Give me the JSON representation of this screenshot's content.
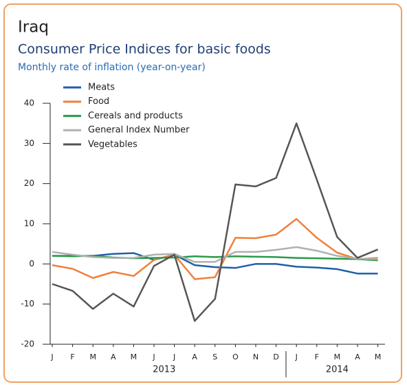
{
  "chart_data": {
    "type": "line",
    "title": "Iraq",
    "subtitle": "Consumer Price Indices for basic foods",
    "y_label": "Monthly rate of inflation (year-on-year)",
    "categories": [
      "J",
      "F",
      "M",
      "A",
      "M",
      "J",
      "J",
      "A",
      "S",
      "O",
      "N",
      "D",
      "J",
      "F",
      "M",
      "A",
      "M"
    ],
    "years": [
      "2013",
      "2014"
    ],
    "ylim": [
      -20,
      40
    ],
    "yticks": [
      -20,
      -10,
      0,
      10,
      20,
      30,
      40
    ],
    "series": [
      {
        "name": "Meats",
        "color": "#1f5fa8",
        "values": [
          2,
          2,
          2,
          2.5,
          2.7,
          1,
          2.3,
          -0.3,
          -0.8,
          -1,
          0,
          0,
          -0.7,
          -0.9,
          -1.3,
          -2.4,
          -2.4
        ]
      },
      {
        "name": "Food",
        "color": "#f07f3c",
        "values": [
          -0.3,
          -1.2,
          -3.5,
          -2,
          -3,
          1,
          2.3,
          -3.8,
          -3.3,
          6.5,
          6.4,
          7.3,
          11.2,
          6.5,
          2.8,
          1.2,
          1.5
        ]
      },
      {
        "name": "Cereals and products",
        "color": "#2a9a48",
        "values": [
          2,
          1.9,
          2,
          1.6,
          1.4,
          1.5,
          1.6,
          1.9,
          1.7,
          1.9,
          1.8,
          1.7,
          1.5,
          1.4,
          1.3,
          1.2,
          0.9
        ]
      },
      {
        "name": "General Index Number",
        "color": "#b0b0b0",
        "values": [
          3,
          2.3,
          1.7,
          1.5,
          1.5,
          2.3,
          2.5,
          0.5,
          0.5,
          3,
          3,
          3.5,
          4.2,
          3.3,
          2,
          1.3,
          1.2
        ]
      },
      {
        "name": "Vegetables",
        "color": "#555555",
        "values": [
          -5,
          -6.7,
          -11.2,
          -7.4,
          -10.6,
          -0.5,
          2.3,
          -14.2,
          -8.7,
          19.8,
          19.3,
          21.4,
          35,
          21,
          6.7,
          1.5,
          3.6
        ]
      }
    ]
  }
}
